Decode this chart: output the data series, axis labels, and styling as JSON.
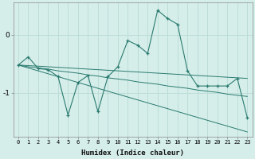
{
  "xlabel": "Humidex (Indice chaleur)",
  "ylabel": "",
  "background_color": "#d5eeea",
  "line_color": "#2a7a6f",
  "grid_color": "#bdddd8",
  "x": [
    0,
    1,
    2,
    3,
    4,
    5,
    6,
    7,
    8,
    9,
    10,
    11,
    12,
    13,
    14,
    15,
    16,
    17,
    18,
    19,
    20,
    21,
    22,
    23
  ],
  "y_main": [
    -0.52,
    -0.38,
    -0.58,
    -0.6,
    -0.72,
    -1.38,
    -0.82,
    -0.7,
    -1.32,
    -0.72,
    -0.55,
    -0.1,
    -0.18,
    -0.32,
    0.42,
    0.28,
    0.18,
    -0.62,
    -0.88,
    -0.88,
    -0.88,
    -0.88,
    -0.75,
    -1.42
  ],
  "y_trend1": [
    -0.52,
    -0.53,
    -0.54,
    -0.55,
    -0.56,
    -0.57,
    -0.58,
    -0.59,
    -0.6,
    -0.61,
    -0.62,
    -0.63,
    -0.64,
    -0.65,
    -0.66,
    -0.67,
    -0.68,
    -0.69,
    -0.7,
    -0.71,
    -0.72,
    -0.73,
    -0.74,
    -0.75
  ],
  "y_trend2": [
    -0.52,
    -0.55,
    -0.57,
    -0.59,
    -0.62,
    -0.64,
    -0.66,
    -0.69,
    -0.71,
    -0.74,
    -0.76,
    -0.78,
    -0.81,
    -0.83,
    -0.85,
    -0.88,
    -0.9,
    -0.92,
    -0.95,
    -0.97,
    -0.99,
    -1.02,
    -1.04,
    -1.06
  ],
  "y_trend3": [
    -0.52,
    -0.57,
    -0.62,
    -0.67,
    -0.72,
    -0.77,
    -0.82,
    -0.87,
    -0.92,
    -0.97,
    -1.02,
    -1.07,
    -1.12,
    -1.17,
    -1.22,
    -1.27,
    -1.32,
    -1.37,
    -1.42,
    -1.47,
    -1.52,
    -1.57,
    -1.62,
    -1.67
  ],
  "ylim": [
    -1.75,
    0.55
  ],
  "yticks": [
    0,
    -1
  ],
  "xlim": [
    -0.5,
    23.5
  ]
}
